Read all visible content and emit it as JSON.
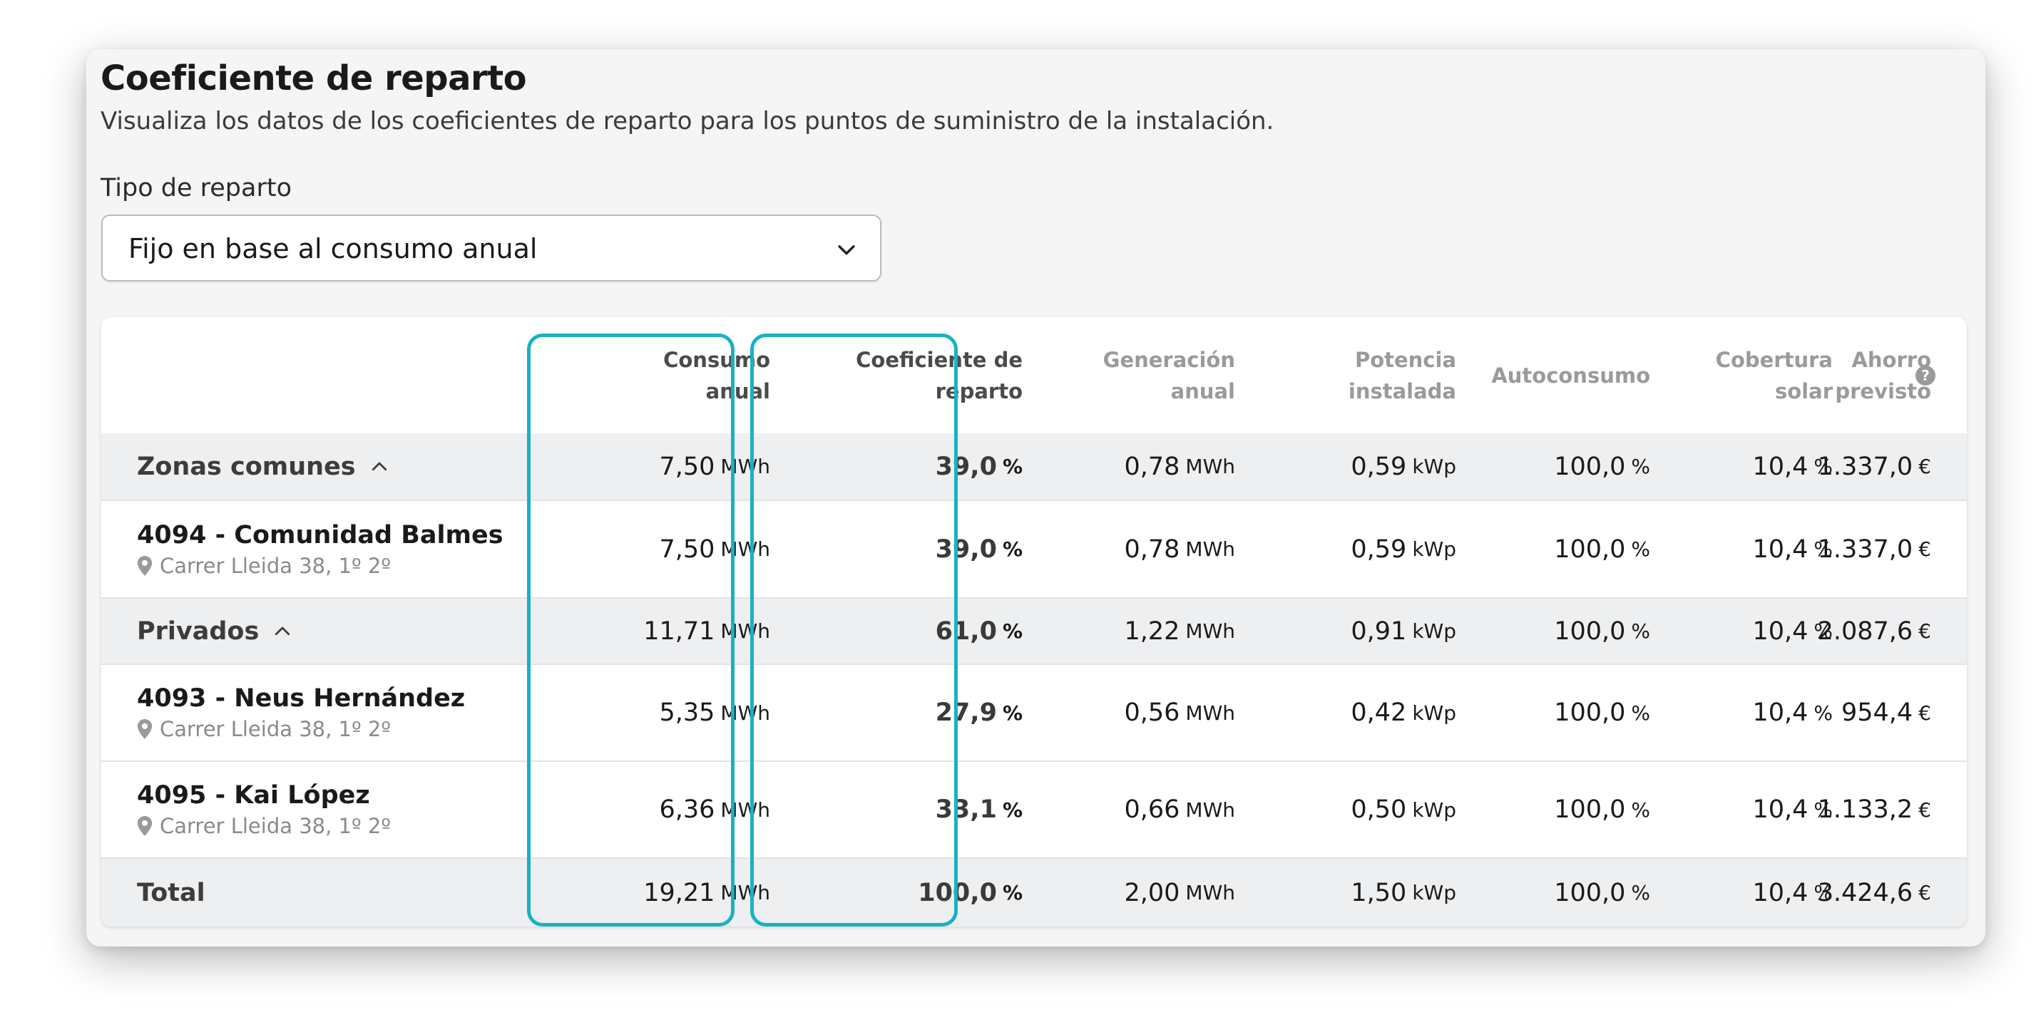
{
  "header": {
    "title": "Coeficiente de reparto",
    "subtitle": "Visualiza los datos de los coeficientes de reparto para los puntos de suministro de la instalación."
  },
  "filter": {
    "label": "Tipo de reparto",
    "selected": "Fijo en base al consumo anual"
  },
  "table": {
    "columns": {
      "consumo": [
        "Consumo",
        "anual"
      ],
      "coeficiente": [
        "Coeficiente de",
        "reparto"
      ],
      "generacion": [
        "Generación",
        "anual"
      ],
      "potencia": [
        "Potencia",
        "instalada"
      ],
      "autoconsumo": [
        "Autoconsumo"
      ],
      "cobertura": [
        "Cobertura",
        "solar"
      ],
      "ahorro": [
        "Ahorro",
        "previsto"
      ],
      "ahorro_help": "?"
    },
    "units": {
      "energy": "MWh",
      "percent": "%",
      "power": "kWp",
      "currency": "€"
    },
    "rows": [
      {
        "type": "group",
        "name": "Zonas comunes",
        "consumo": "7,50",
        "coeficiente": "39,0",
        "generacion": "0,78",
        "potencia": "0,59",
        "autoconsumo": "100,0",
        "cobertura": "10,4",
        "ahorro": "1.337,0"
      },
      {
        "type": "item",
        "name": "4094 - Comunidad Balmes",
        "address": "Carrer Lleida 38, 1º 2º",
        "consumo": "7,50",
        "coeficiente": "39,0",
        "generacion": "0,78",
        "potencia": "0,59",
        "autoconsumo": "100,0",
        "cobertura": "10,4",
        "ahorro": "1.337,0"
      },
      {
        "type": "group",
        "name": "Privados",
        "consumo": "11,71",
        "coeficiente": "61,0",
        "generacion": "1,22",
        "potencia": "0,91",
        "autoconsumo": "100,0",
        "cobertura": "10,4",
        "ahorro": "2.087,6"
      },
      {
        "type": "item",
        "name": "4093 - Neus Hernández",
        "address": "Carrer Lleida 38, 1º 2º",
        "consumo": "5,35",
        "coeficiente": "27,9",
        "generacion": "0,56",
        "potencia": "0,42",
        "autoconsumo": "100,0",
        "cobertura": "10,4",
        "ahorro": "954,4"
      },
      {
        "type": "item",
        "name": "4095 - Kai López",
        "address": "Carrer Lleida 38, 1º 2º",
        "consumo": "6,36",
        "coeficiente": "33,1",
        "generacion": "0,66",
        "potencia": "0,50",
        "autoconsumo": "100,0",
        "cobertura": "10,4",
        "ahorro": "1.133,2"
      },
      {
        "type": "total",
        "name": "Total",
        "consumo": "19,21",
        "coeficiente": "100,0",
        "generacion": "2,00",
        "potencia": "1,50",
        "autoconsumo": "100,0",
        "cobertura": "10,4",
        "ahorro": "3.424,6"
      }
    ]
  },
  "colors": {
    "highlight": "#1ab0c6",
    "card_bg": "#f5f5f5",
    "group_bg": "#eeeff1"
  },
  "icons": {
    "dropdown": "chevron-down-icon",
    "collapse": "chevron-up-icon",
    "address": "map-pin-icon",
    "help": "help-circle-icon"
  }
}
